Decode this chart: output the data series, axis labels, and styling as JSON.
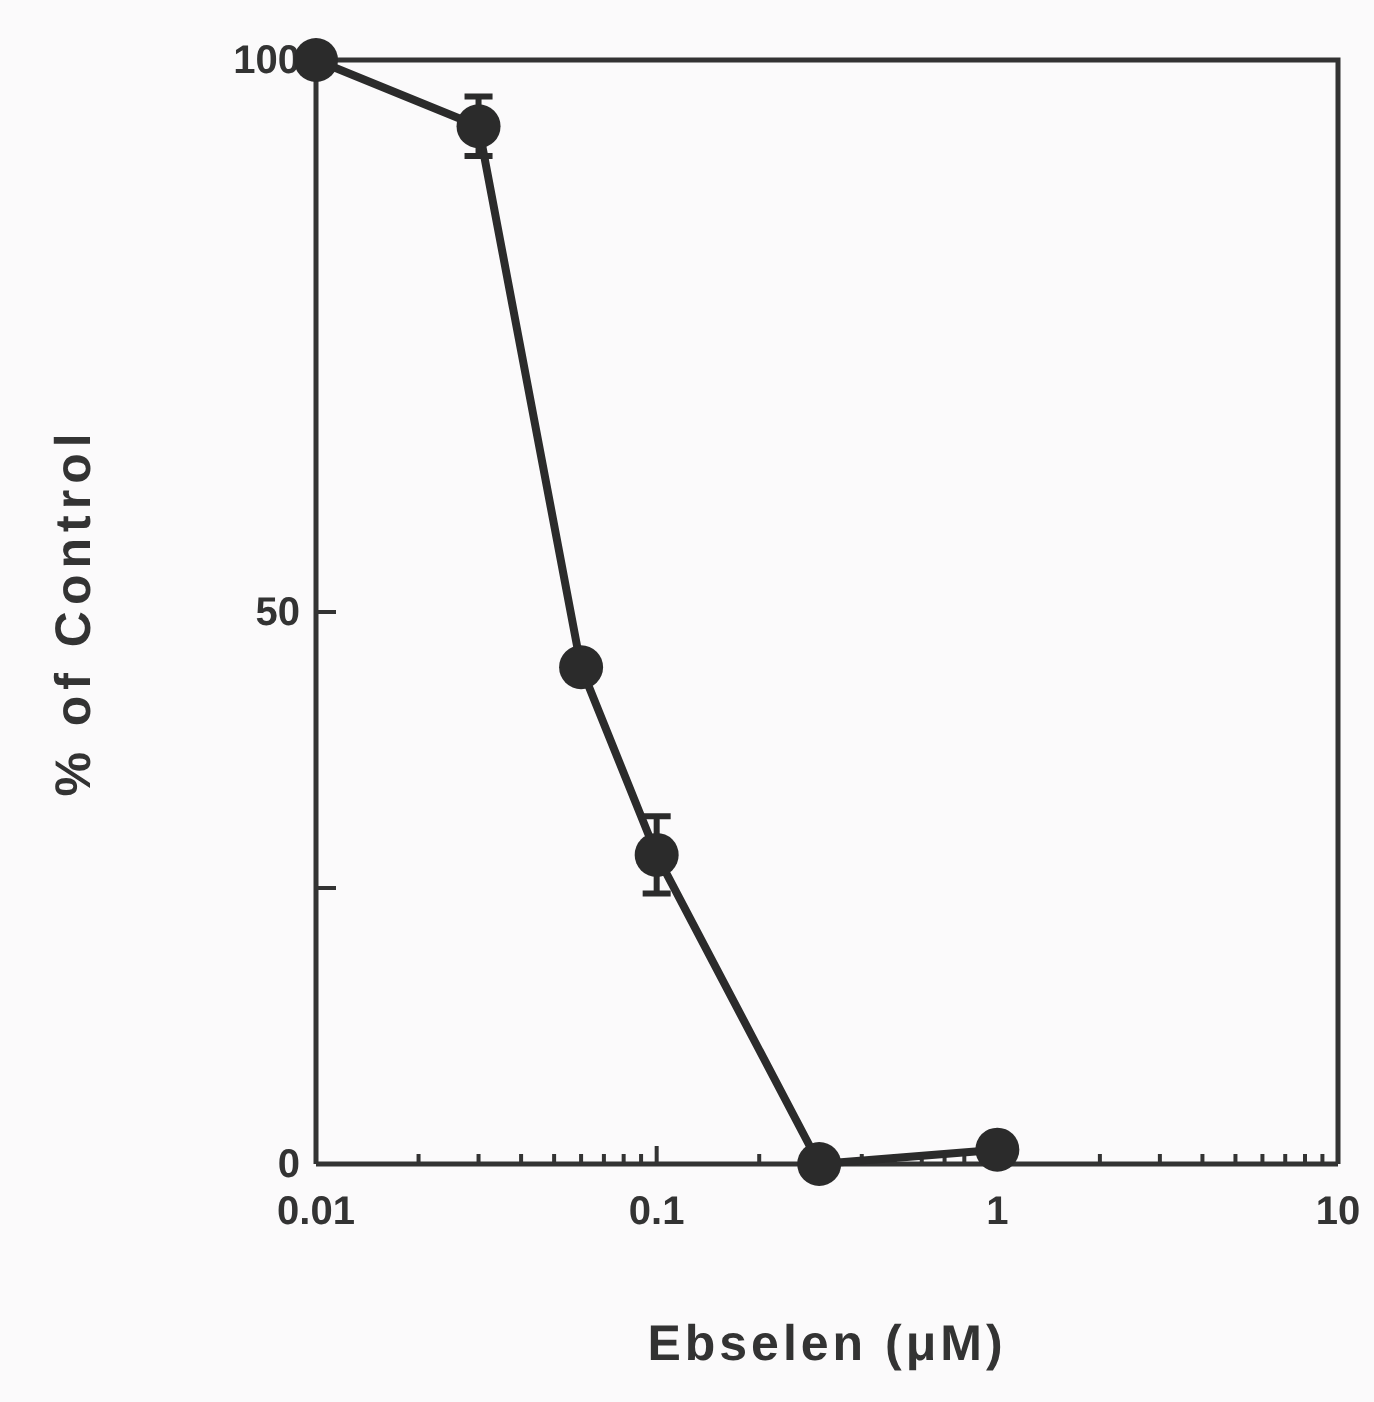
{
  "chart_data": {
    "type": "line",
    "xlabel": "Ebselen  (μM)",
    "ylabel": "% of Control",
    "log": "x",
    "marker": "circle",
    "line_style": "solid",
    "x": [
      0.01,
      0.03,
      0.06,
      0.1,
      0.3,
      1
    ],
    "series": [
      {
        "color": "#2b2b2b",
        "values": [
          100,
          94,
          45,
          28,
          0,
          1.3
        ],
        "errors": [
          null,
          2.7,
          null,
          3.5,
          null,
          null
        ]
      }
    ],
    "xlim": [
      0.01,
      10
    ],
    "ylim": [
      0,
      100
    ],
    "xticks": [
      0.01,
      {
        "value": 0.02,
        "label": null
      },
      {
        "value": 0.03,
        "label": null
      },
      {
        "value": 0.04,
        "label": null
      },
      {
        "value": 0.05,
        "label": null
      },
      {
        "value": 0.06,
        "label": null
      },
      {
        "value": 0.07,
        "label": null
      },
      {
        "value": 0.08,
        "label": null
      },
      {
        "value": 0.09,
        "label": null
      },
      0.1,
      {
        "value": 0.2,
        "label": null
      },
      {
        "value": 0.3,
        "label": null
      },
      {
        "value": 0.4,
        "label": null
      },
      {
        "value": 0.5,
        "label": null
      },
      {
        "value": 0.6,
        "label": null
      },
      {
        "value": 0.7,
        "label": null
      },
      {
        "value": 0.8,
        "label": null
      },
      {
        "value": 0.9,
        "label": null
      },
      1,
      {
        "value": 2,
        "label": null
      },
      {
        "value": 3,
        "label": null
      },
      {
        "value": 4,
        "label": null
      },
      {
        "value": 5,
        "label": null
      },
      {
        "value": 6,
        "label": null
      },
      {
        "value": 7,
        "label": null
      },
      {
        "value": 8,
        "label": null
      },
      {
        "value": 9,
        "label": null
      },
      10
    ],
    "yticks": [
      0,
      {
        "value": 25,
        "label": null
      },
      50,
      100
    ]
  }
}
